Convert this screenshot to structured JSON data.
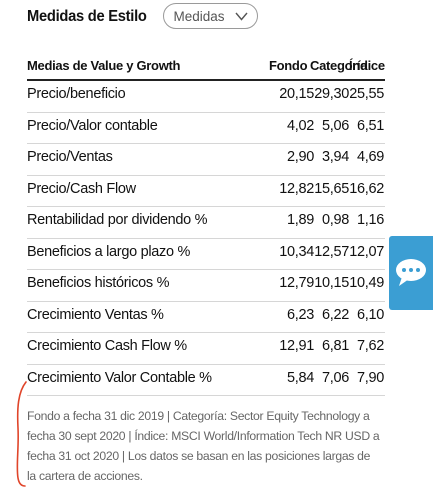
{
  "header": {
    "title": "Medidas de Estilo",
    "dropdown_label": "Medidas"
  },
  "table": {
    "columns": [
      "Medias de Value y Growth",
      "Fondo",
      "Categoría",
      "Índice"
    ],
    "rows": [
      {
        "label": "Precio/beneficio",
        "fondo": "20,15",
        "categoria": "29,30",
        "indice": "25,55"
      },
      {
        "label": "Precio/Valor contable",
        "fondo": "4,02",
        "categoria": "5,06",
        "indice": "6,51"
      },
      {
        "label": "Precio/Ventas",
        "fondo": "2,90",
        "categoria": "3,94",
        "indice": "4,69"
      },
      {
        "label": "Precio/Cash Flow",
        "fondo": "12,82",
        "categoria": "15,65",
        "indice": "16,62"
      },
      {
        "label": "Rentabilidad por dividendo %",
        "fondo": "1,89",
        "categoria": "0,98",
        "indice": "1,16"
      },
      {
        "label": "Beneficios a largo plazo %",
        "fondo": "10,34",
        "categoria": "12,57",
        "indice": "12,07"
      },
      {
        "label": "Beneficios históricos %",
        "fondo": "12,79",
        "categoria": "10,15",
        "indice": "10,49"
      },
      {
        "label": "Crecimiento Ventas %",
        "fondo": "6,23",
        "categoria": "6,22",
        "indice": "6,10"
      },
      {
        "label": "Crecimiento Cash Flow %",
        "fondo": "12,91",
        "categoria": "6,81",
        "indice": "7,62"
      },
      {
        "label": "Crecimiento Valor Contable %",
        "fondo": "5,84",
        "categoria": "7,06",
        "indice": "7,90"
      }
    ]
  },
  "footnote": "Fondo a fecha 31 dic 2019 | Categoría: Sector Equity Technology a fecha 30 sept 2020 | Índice: MSCI World/Information Tech NR USD a fecha 31 oct 2020 | Los datos se basan en las posiciones largas de la cartera de acciones.",
  "colors": {
    "accent_chat": "#3b9ed3",
    "annotation": "#e0452a",
    "footnote_text": "#666666"
  },
  "icons": {
    "dropdown": "chevron-down-icon",
    "chat": "speech-bubble-icon"
  }
}
